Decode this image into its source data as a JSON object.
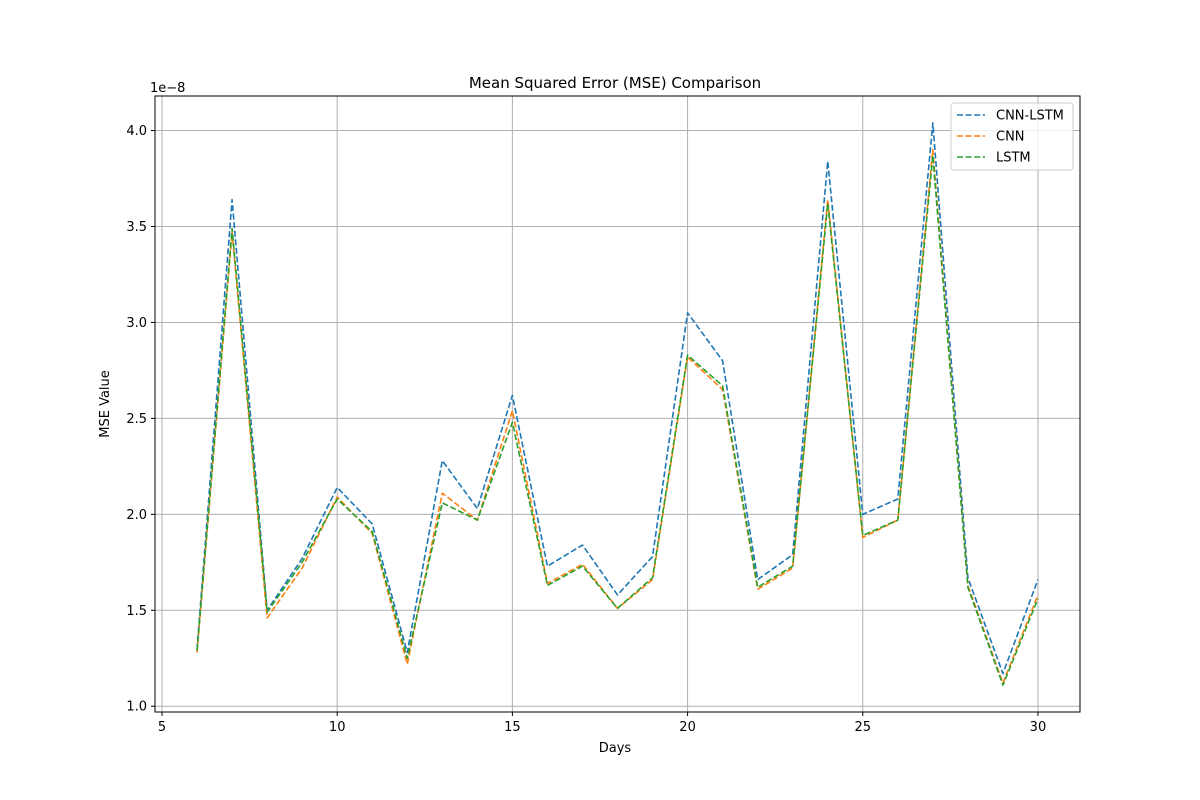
{
  "chart_data": {
    "type": "line",
    "title": "Mean Squared Error (MSE) Comparison",
    "xlabel": "Days",
    "ylabel": "MSE Value",
    "offset_text": "1e−8",
    "xlim": [
      4.8,
      31.2
    ],
    "ylim": [
      0.97,
      4.18
    ],
    "xticks": [
      5,
      10,
      15,
      20,
      25,
      30
    ],
    "yticks": [
      1.0,
      1.5,
      2.0,
      2.5,
      3.0,
      3.5,
      4.0
    ],
    "ytick_labels": [
      "1.0",
      "1.5",
      "2.0",
      "2.5",
      "3.0",
      "3.5",
      "4.0"
    ],
    "grid": true,
    "legend_position": "upper right",
    "x": [
      6,
      7,
      8,
      9,
      10,
      11,
      12,
      13,
      14,
      15,
      16,
      17,
      18,
      19,
      20,
      21,
      22,
      23,
      24,
      25,
      26,
      27,
      28,
      29,
      30
    ],
    "series": [
      {
        "name": "CNN-LSTM",
        "color": "#1f77b4",
        "values": [
          1.3,
          3.64,
          1.5,
          1.77,
          2.14,
          1.95,
          1.28,
          2.28,
          2.03,
          2.62,
          1.73,
          1.84,
          1.58,
          1.78,
          3.05,
          2.8,
          1.66,
          1.79,
          3.84,
          2.0,
          2.08,
          4.04,
          1.67,
          1.17,
          1.66
        ]
      },
      {
        "name": "CNN",
        "color": "#ff7f0e",
        "values": [
          1.28,
          3.47,
          1.46,
          1.72,
          2.09,
          1.9,
          1.22,
          2.11,
          1.97,
          2.54,
          1.64,
          1.74,
          1.51,
          1.66,
          2.82,
          2.65,
          1.61,
          1.72,
          3.64,
          1.88,
          1.97,
          3.9,
          1.63,
          1.12,
          1.58
        ]
      },
      {
        "name": "LSTM",
        "color": "#2ca02c",
        "values": [
          1.29,
          3.49,
          1.49,
          1.75,
          2.08,
          1.91,
          1.25,
          2.06,
          1.97,
          2.48,
          1.63,
          1.73,
          1.51,
          1.67,
          2.83,
          2.67,
          1.62,
          1.73,
          3.62,
          1.89,
          1.97,
          3.87,
          1.62,
          1.11,
          1.56
        ]
      }
    ]
  }
}
